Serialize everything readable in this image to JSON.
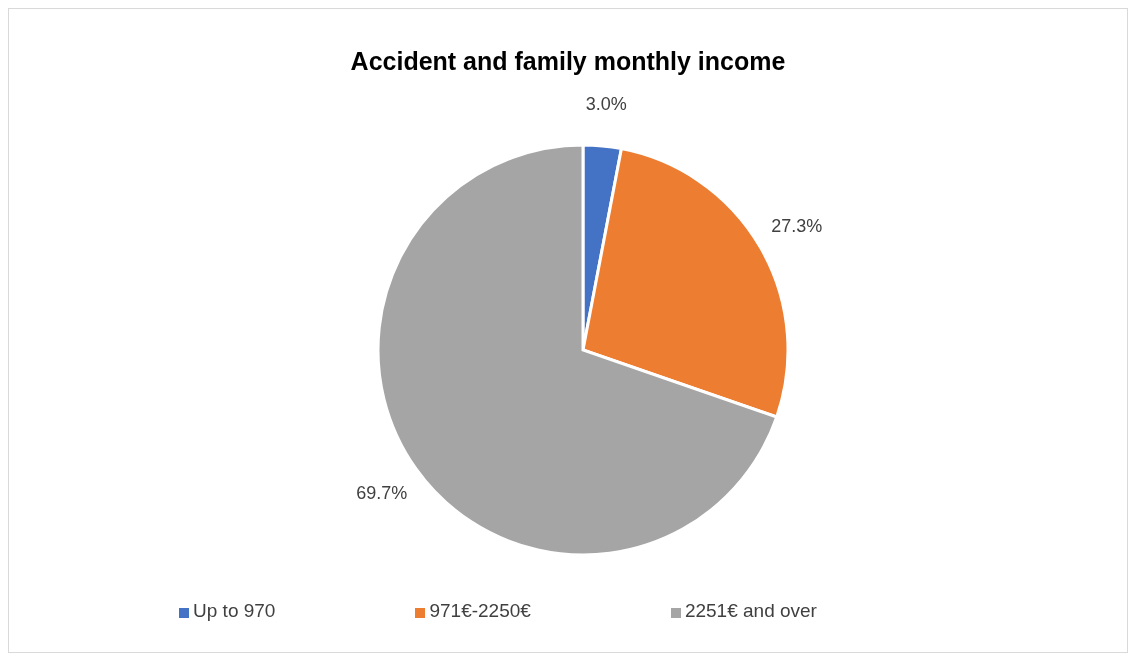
{
  "chart_data": {
    "type": "pie",
    "title": "Accident and family monthly income",
    "categories": [
      "Up to 970",
      "971€-2250€",
      "2251€ and over"
    ],
    "values": [
      3.0,
      27.3,
      69.7
    ],
    "value_labels": [
      "3.0%",
      "27.3%",
      "69.7%"
    ],
    "colors": [
      "#4472c4",
      "#ed7d31",
      "#a5a5a5"
    ],
    "legend": "bottom"
  }
}
